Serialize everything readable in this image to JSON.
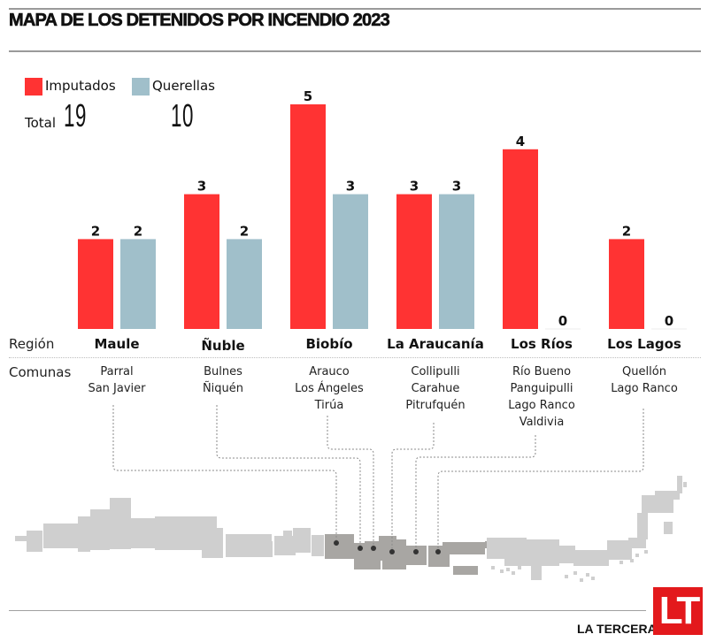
{
  "header": {
    "title": "MAPA DE LOS DETENIDOS POR INCENDIO 2023"
  },
  "legend": {
    "items": [
      {
        "label": "Imputados",
        "color": "#ff3333"
      },
      {
        "label": "Querellas",
        "color": "#a0bfca"
      }
    ],
    "total_label": "Total",
    "totals": [
      "19",
      "10"
    ]
  },
  "row_labels": {
    "region": "Región",
    "comunas": "Comunas"
  },
  "regions": [
    {
      "name": "Maule",
      "comunas": [
        "Parral",
        "San Javier"
      ]
    },
    {
      "name": "Ñuble",
      "comunas": [
        "Bulnes",
        "Ñiquén"
      ]
    },
    {
      "name": "Biobío",
      "comunas": [
        "Arauco",
        "Los Ángeles",
        "Tirúa"
      ]
    },
    {
      "name": "La Araucanía",
      "comunas": [
        "Collipulli",
        "Carahue",
        "Pitrufquén"
      ]
    },
    {
      "name": "Los Ríos",
      "comunas": [
        "Río Bueno",
        "Panguipulli",
        "Lago Ranco",
        "Valdivia"
      ]
    },
    {
      "name": "Los Lagos",
      "comunas": [
        "Quellón",
        "Lago Ranco"
      ]
    }
  ],
  "chart_data": {
    "type": "bar",
    "title": "MAPA DE LOS DETENIDOS POR INCENDIO 2023",
    "xlabel": "Región",
    "ylabel": "",
    "categories": [
      "Maule",
      "Ñuble",
      "Biobío",
      "La Araucanía",
      "Los Ríos",
      "Los Lagos"
    ],
    "series": [
      {
        "name": "Imputados",
        "color": "#ff3333",
        "values": [
          2,
          3,
          5,
          3,
          4,
          2
        ]
      },
      {
        "name": "Querellas",
        "color": "#a0bfca",
        "values": [
          2,
          2,
          3,
          3,
          0,
          0
        ]
      }
    ],
    "totals": {
      "Imputados": 19,
      "Querellas": 10
    },
    "ylim": [
      0,
      5
    ],
    "grid": false,
    "legend": "top-left",
    "data_labels": true
  },
  "footer": {
    "brand": "LA TERCERA",
    "logo": "LT",
    "logo_color": "#e3191c"
  }
}
